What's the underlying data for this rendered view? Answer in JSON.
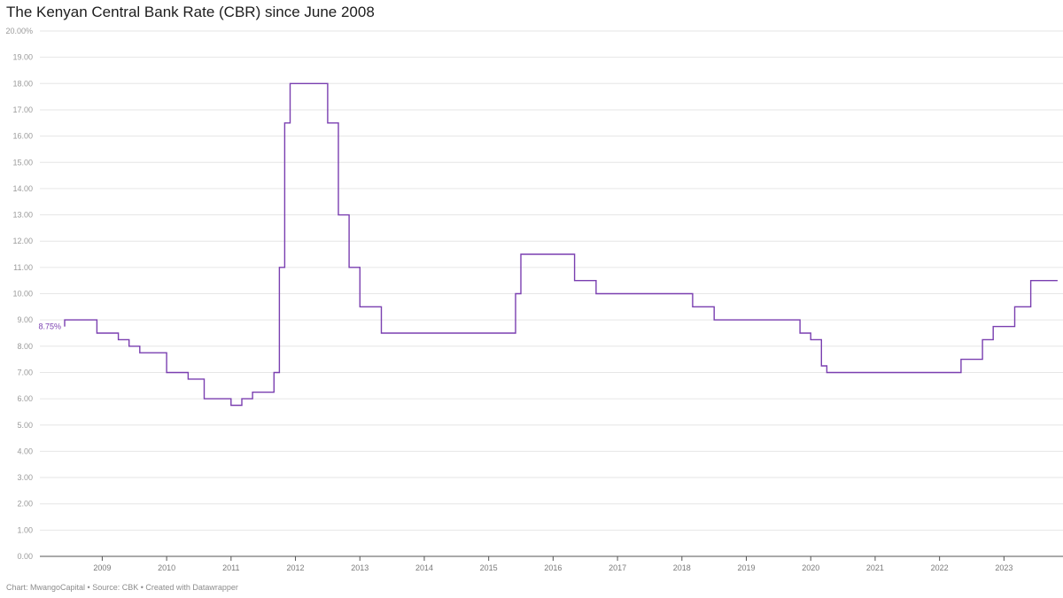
{
  "chart_data": {
    "type": "line",
    "title": "The Kenyan Central Bank Rate (CBR) since June 2008",
    "interpolation": "step-after",
    "line_color": "#7a3fb0",
    "grid": true,
    "ylim": [
      0,
      20
    ],
    "xlim": [
      "2008-06",
      "2023-11"
    ],
    "y_ticks": [
      "0.00",
      "1.00",
      "2.00",
      "3.00",
      "4.00",
      "5.00",
      "6.00",
      "7.00",
      "8.00",
      "9.00",
      "10.00",
      "11.00",
      "12.00",
      "13.00",
      "14.00",
      "15.00",
      "16.00",
      "17.00",
      "18.00",
      "19.00",
      "20.00%"
    ],
    "x_ticks": [
      "2009",
      "2010",
      "2011",
      "2012",
      "2013",
      "2014",
      "2015",
      "2016",
      "2017",
      "2018",
      "2019",
      "2020",
      "2021",
      "2022",
      "2023"
    ],
    "annotation": {
      "label": "8.75%",
      "x": "2008-06",
      "y": 8.75
    },
    "series": [
      {
        "points": [
          {
            "date": "2008-06",
            "rate": 8.75
          },
          {
            "date": "2008-06",
            "rate": 9.0
          },
          {
            "date": "2008-12",
            "rate": 8.5
          },
          {
            "date": "2009-04",
            "rate": 8.25
          },
          {
            "date": "2009-06",
            "rate": 8.0
          },
          {
            "date": "2009-08",
            "rate": 7.75
          },
          {
            "date": "2010-01",
            "rate": 7.0
          },
          {
            "date": "2010-05",
            "rate": 6.75
          },
          {
            "date": "2010-08",
            "rate": 6.0
          },
          {
            "date": "2011-01",
            "rate": 5.75
          },
          {
            "date": "2011-03",
            "rate": 6.0
          },
          {
            "date": "2011-05",
            "rate": 6.25
          },
          {
            "date": "2011-09",
            "rate": 7.0
          },
          {
            "date": "2011-10",
            "rate": 11.0
          },
          {
            "date": "2011-11",
            "rate": 16.5
          },
          {
            "date": "2011-12",
            "rate": 18.0
          },
          {
            "date": "2012-07",
            "rate": 16.5
          },
          {
            "date": "2012-09",
            "rate": 13.0
          },
          {
            "date": "2012-11",
            "rate": 11.0
          },
          {
            "date": "2013-01",
            "rate": 9.5
          },
          {
            "date": "2013-05",
            "rate": 8.5
          },
          {
            "date": "2015-06",
            "rate": 10.0
          },
          {
            "date": "2015-07",
            "rate": 11.5
          },
          {
            "date": "2016-05",
            "rate": 10.5
          },
          {
            "date": "2016-09",
            "rate": 10.0
          },
          {
            "date": "2018-03",
            "rate": 9.5
          },
          {
            "date": "2018-07",
            "rate": 9.0
          },
          {
            "date": "2019-11",
            "rate": 8.5
          },
          {
            "date": "2020-01",
            "rate": 8.25
          },
          {
            "date": "2020-03",
            "rate": 7.25
          },
          {
            "date": "2020-04",
            "rate": 7.0
          },
          {
            "date": "2022-05",
            "rate": 7.5
          },
          {
            "date": "2022-09",
            "rate": 8.25
          },
          {
            "date": "2022-11",
            "rate": 8.75
          },
          {
            "date": "2023-03",
            "rate": 9.5
          },
          {
            "date": "2023-06",
            "rate": 10.5
          },
          {
            "date": "2023-11",
            "rate": 10.5
          }
        ]
      }
    ]
  },
  "footer": "Chart: MwangoCapital • Source: CBK • Created with Datawrapper"
}
